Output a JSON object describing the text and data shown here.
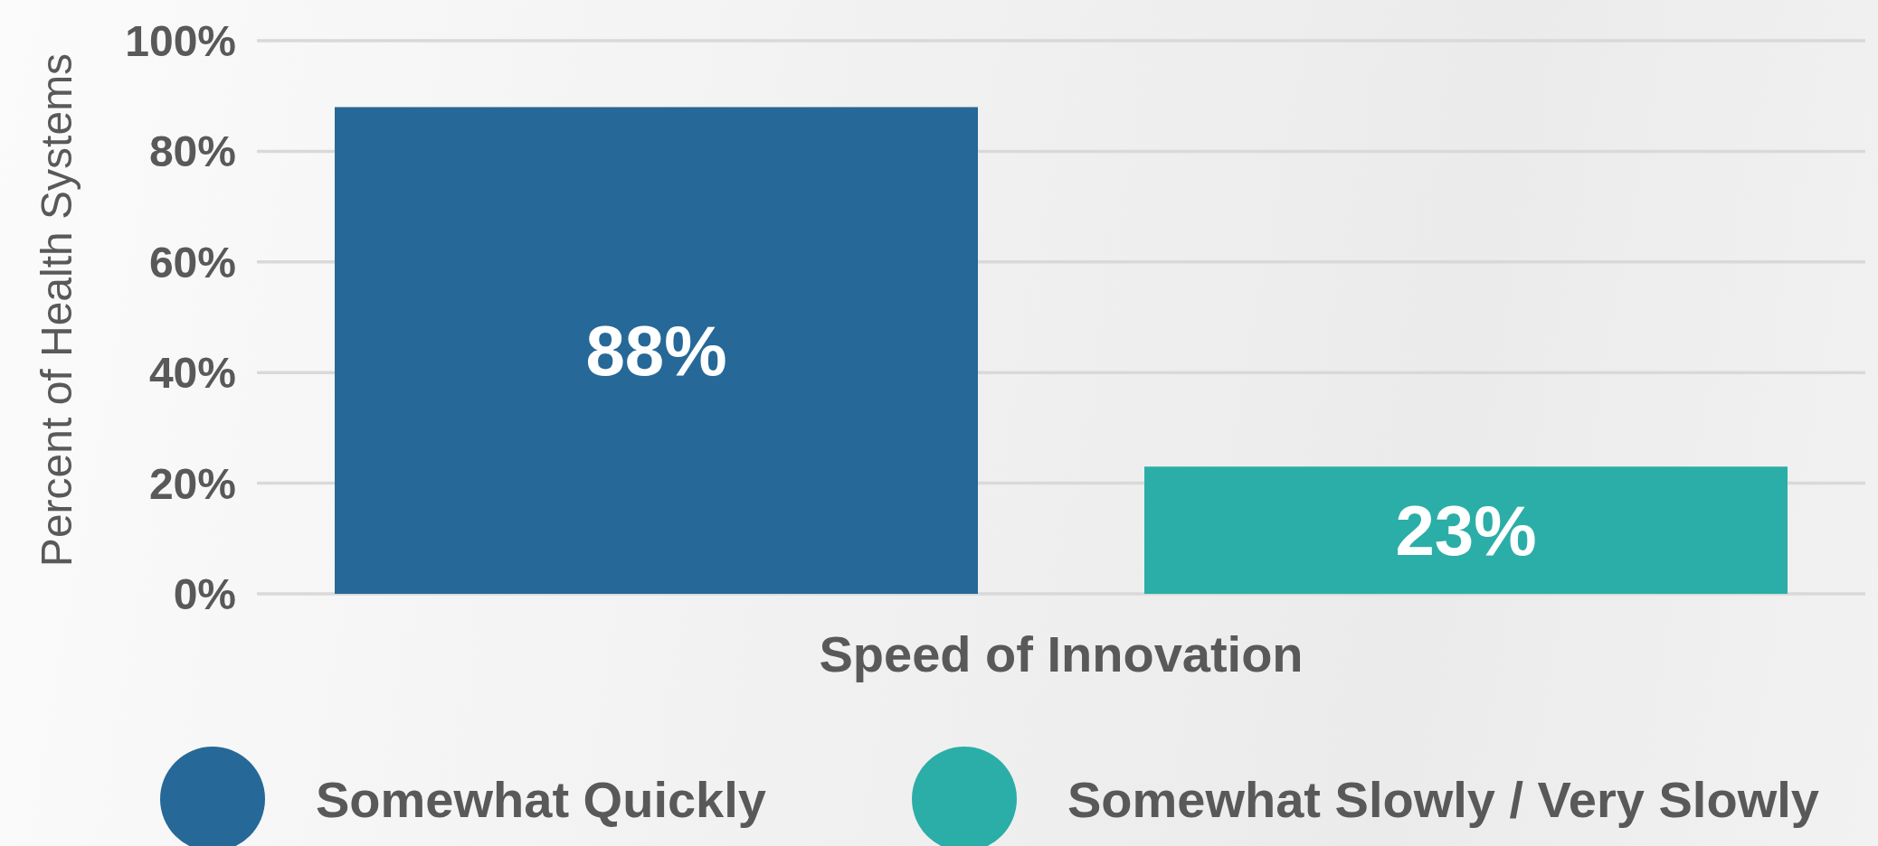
{
  "chart_data": {
    "type": "bar",
    "ylabel": "Percent of Health Systems",
    "categories": [
      "Speed of Innovation"
    ],
    "series": [
      {
        "name": "Somewhat Quickly",
        "color": "#266898",
        "values": [
          88
        ],
        "value_labels": [
          "88%"
        ]
      },
      {
        "name": "Somewhat Slowly / Very Slowly",
        "color": "#2baea7",
        "values": [
          23
        ],
        "value_labels": [
          "23%"
        ]
      }
    ],
    "ylim": [
      0,
      100
    ],
    "yticks": [
      {
        "value": 0,
        "label": "0%"
      },
      {
        "value": 20,
        "label": "20%"
      },
      {
        "value": 40,
        "label": "40%"
      },
      {
        "value": 60,
        "label": "60%"
      },
      {
        "value": 80,
        "label": "80%"
      },
      {
        "value": 100,
        "label": "100%"
      }
    ],
    "grid": "y",
    "legend": "bottom"
  }
}
